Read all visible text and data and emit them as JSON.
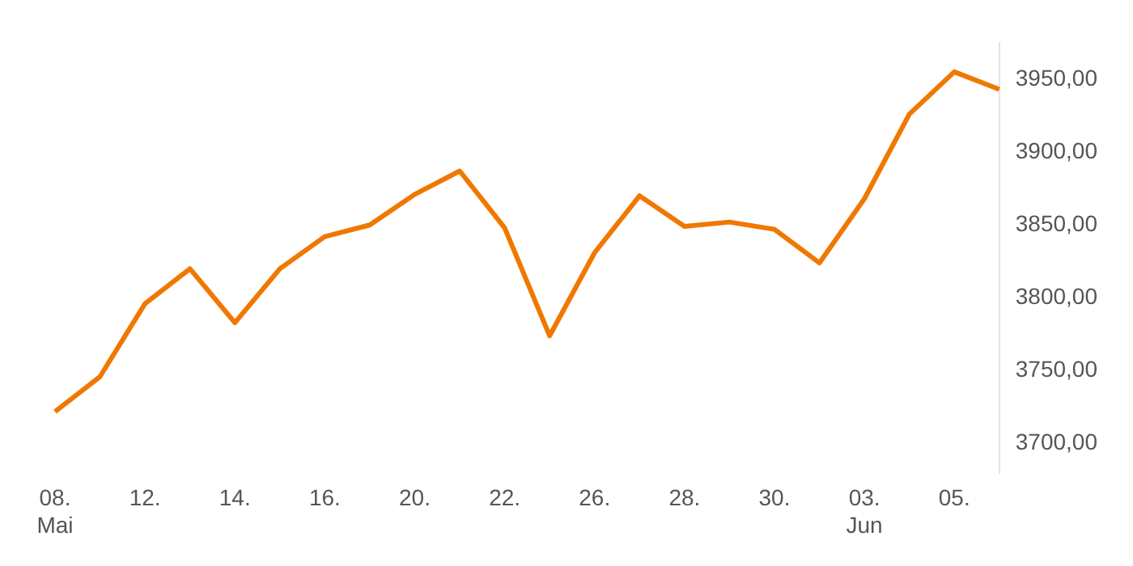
{
  "chart_data": {
    "type": "line",
    "categories": [
      "08.\nMai",
      null,
      "12.",
      null,
      "14.",
      null,
      "16.",
      null,
      "20.",
      null,
      "22.",
      null,
      "26.",
      null,
      "28.",
      null,
      "30.",
      null,
      "03.\nJun",
      null,
      "05.",
      null
    ],
    "series": [
      {
        "color": "#f07800",
        "values": [
          3722,
          3746,
          3796,
          3820,
          3783,
          3820,
          3842,
          3850,
          3871,
          3887,
          3848,
          3774,
          3831,
          3870,
          3849,
          3852,
          3847,
          3824,
          3868,
          3926,
          3955,
          3943
        ]
      }
    ],
    "ylim": [
      3680,
      3975
    ],
    "yticks": [
      {
        "value": 3700,
        "label": "3700,00"
      },
      {
        "value": 3750,
        "label": "3750,00"
      },
      {
        "value": 3800,
        "label": "3800,00"
      },
      {
        "value": 3850,
        "label": "3850,00"
      },
      {
        "value": 3900,
        "label": "3900,00"
      },
      {
        "value": 3950,
        "label": "3950,00"
      }
    ],
    "grid": false,
    "legend": false,
    "marker": "none",
    "line_style": "solid"
  }
}
